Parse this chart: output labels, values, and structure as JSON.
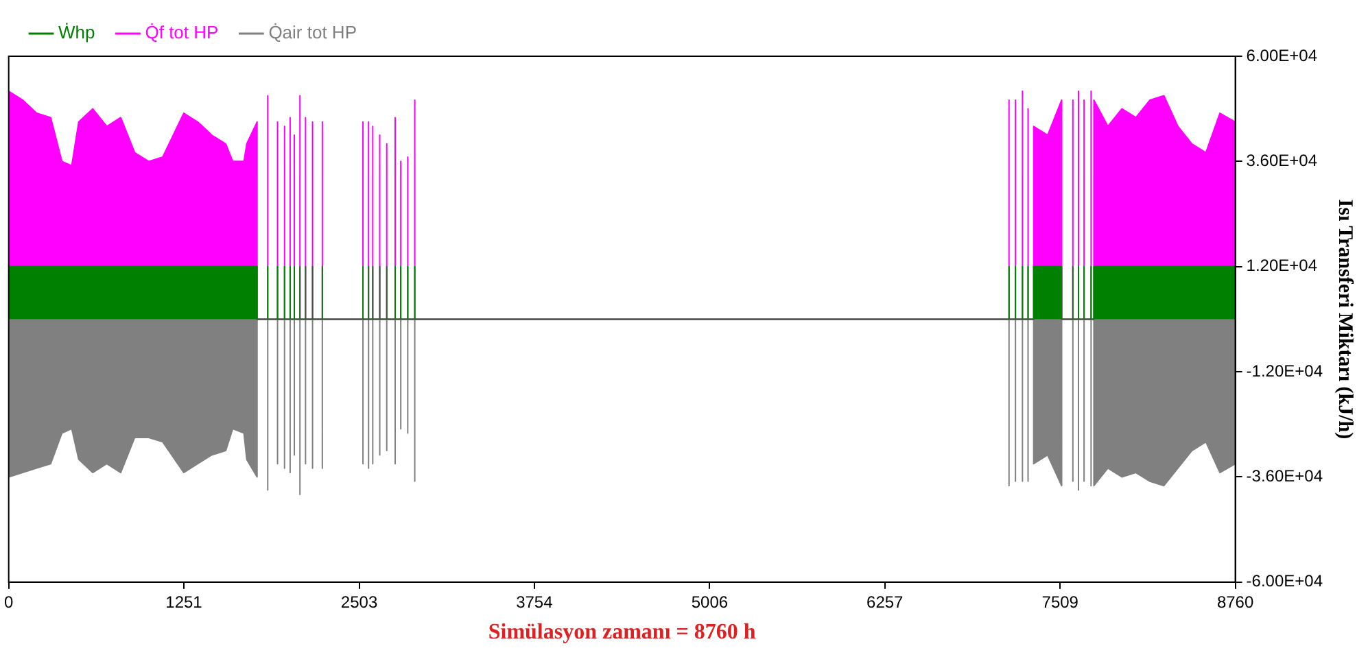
{
  "chart_data": {
    "type": "area",
    "xlabel": "Simülasyon zamanı = 8760 h",
    "ylabel": "Isı Transferi Miktarı (kJ/h)",
    "legend": "top left",
    "grid": false,
    "xlim": [
      0,
      8760
    ],
    "xticks": [
      0,
      1251,
      2503,
      3754,
      5006,
      6257,
      7509,
      8760
    ],
    "ylim": [
      -60000,
      60000
    ],
    "yticks": [
      {
        "value": -60000,
        "label": "-6.00E+04"
      },
      {
        "value": -36000,
        "label": "-3.60E+04"
      },
      {
        "value": -12000,
        "label": "-1.20E+04"
      },
      {
        "value": 12000,
        "label": "1.20E+04"
      },
      {
        "value": 36000,
        "label": "3.60E+04"
      },
      {
        "value": 60000,
        "label": "6.00E+04"
      }
    ],
    "x": [
      0,
      0,
      100,
      200,
      300,
      380,
      450,
      500,
      600,
      700,
      800,
      900,
      1000,
      1100,
      1250,
      1350,
      1450,
      1550,
      1600,
      1680,
      1700,
      1774,
      1774,
      1850,
      1850,
      1850,
      1920,
      1920,
      1920,
      1970,
      1970,
      1970,
      2010,
      2010,
      2010,
      2040,
      2040,
      2040,
      2080,
      2080,
      2080,
      2120,
      2120,
      2120,
      2170,
      2170,
      2170,
      2240,
      2240,
      2240,
      2530,
      2530,
      2530,
      2570,
      2570,
      2570,
      2600,
      2600,
      2600,
      2650,
      2650,
      2650,
      2700,
      2700,
      2700,
      2760,
      2760,
      2760,
      2800,
      2800,
      2800,
      2850,
      2850,
      2850,
      2900,
      2900,
      2900,
      7144,
      7144,
      7144,
      7190,
      7190,
      7190,
      7240,
      7240,
      7240,
      7280,
      7280,
      7280,
      7320,
      7320,
      7420,
      7520,
      7520,
      7600,
      7600,
      7600,
      7640,
      7640,
      7640,
      7680,
      7680,
      7680,
      7730,
      7730,
      7730,
      7750,
      7750,
      7850,
      7950,
      8050,
      8150,
      8250,
      8350,
      8450,
      8550,
      8650,
      8760,
      8760
    ],
    "series": [
      {
        "name": "Ẇhp",
        "color": "#008000",
        "values": [
          0,
          12000,
          12000,
          12000,
          12000,
          12000,
          12000,
          12000,
          12000,
          12000,
          12000,
          12000,
          12000,
          12000,
          12000,
          12000,
          12000,
          12000,
          12000,
          12000,
          12000,
          12000,
          0,
          0,
          12000,
          0,
          0,
          12000,
          0,
          0,
          12000,
          0,
          0,
          12000,
          0,
          0,
          12000,
          0,
          0,
          12000,
          0,
          0,
          12000,
          0,
          0,
          12000,
          0,
          0,
          12000,
          0,
          0,
          12000,
          0,
          0,
          12000,
          0,
          0,
          12000,
          0,
          0,
          12000,
          0,
          0,
          12000,
          0,
          0,
          12000,
          0,
          0,
          12000,
          0,
          0,
          12000,
          0,
          0,
          12000,
          0,
          0,
          12000,
          0,
          0,
          12000,
          0,
          0,
          12000,
          0,
          0,
          12000,
          0,
          0,
          12000,
          12000,
          12000,
          0,
          0,
          12000,
          0,
          0,
          12000,
          0,
          0,
          12000,
          0,
          0,
          12000,
          0,
          0,
          12000,
          12000,
          12000,
          12000,
          12000,
          12000,
          12000,
          12000,
          12000,
          12000,
          12000,
          0
        ]
      },
      {
        "name": "Q̇f tot HP",
        "color": "#ff00ff",
        "values": [
          0,
          52000,
          50000,
          47000,
          46000,
          36000,
          35000,
          45000,
          48000,
          44000,
          46000,
          38000,
          36000,
          37000,
          47000,
          45000,
          42000,
          40000,
          36000,
          36000,
          40000,
          45000,
          0,
          0,
          51000,
          0,
          0,
          45000,
          0,
          0,
          44000,
          0,
          0,
          46000,
          0,
          0,
          42000,
          0,
          0,
          51000,
          0,
          0,
          46000,
          0,
          0,
          45000,
          0,
          0,
          45000,
          0,
          0,
          45000,
          0,
          0,
          45000,
          0,
          0,
          44000,
          0,
          0,
          42000,
          0,
          0,
          40000,
          0,
          0,
          46000,
          0,
          0,
          36000,
          0,
          0,
          37000,
          0,
          0,
          50000,
          0,
          0,
          50000,
          0,
          0,
          50000,
          0,
          0,
          52000,
          0,
          0,
          48000,
          0,
          0,
          44000,
          42000,
          50000,
          0,
          0,
          50000,
          0,
          0,
          52000,
          0,
          0,
          50000,
          0,
          0,
          52000,
          0,
          0,
          50000,
          44000,
          48000,
          46000,
          50000,
          51000,
          44000,
          40000,
          38000,
          47000,
          45000,
          0
        ]
      },
      {
        "name": "Q̇air tot HP",
        "color": "#808080",
        "values": [
          0,
          -36000,
          -35000,
          -34000,
          -33000,
          -26000,
          -25000,
          -32000,
          -35000,
          -33000,
          -35000,
          -27000,
          -27000,
          -28000,
          -35000,
          -33000,
          -31000,
          -30000,
          -25000,
          -26000,
          -32000,
          -36000,
          0,
          0,
          -39000,
          0,
          0,
          -33000,
          0,
          0,
          -34000,
          0,
          0,
          -35000,
          0,
          0,
          -31000,
          0,
          0,
          -40000,
          0,
          0,
          -33000,
          0,
          0,
          -34000,
          0,
          0,
          -34000,
          0,
          0,
          -33000,
          0,
          0,
          -34000,
          0,
          0,
          -33000,
          0,
          0,
          -31000,
          0,
          0,
          -30000,
          0,
          0,
          -33000,
          0,
          0,
          -25000,
          0,
          0,
          -26000,
          0,
          0,
          -37000,
          0,
          0,
          -38000,
          0,
          0,
          -37000,
          0,
          0,
          -37000,
          0,
          0,
          -37000,
          0,
          0,
          -33000,
          -31000,
          -38000,
          0,
          0,
          -37000,
          0,
          0,
          -39000,
          0,
          0,
          -37000,
          0,
          0,
          -38000,
          0,
          0,
          -38000,
          -34000,
          -36000,
          -35000,
          -37000,
          -38000,
          -34000,
          -30000,
          -28000,
          -35000,
          -33000,
          0
        ]
      }
    ]
  }
}
